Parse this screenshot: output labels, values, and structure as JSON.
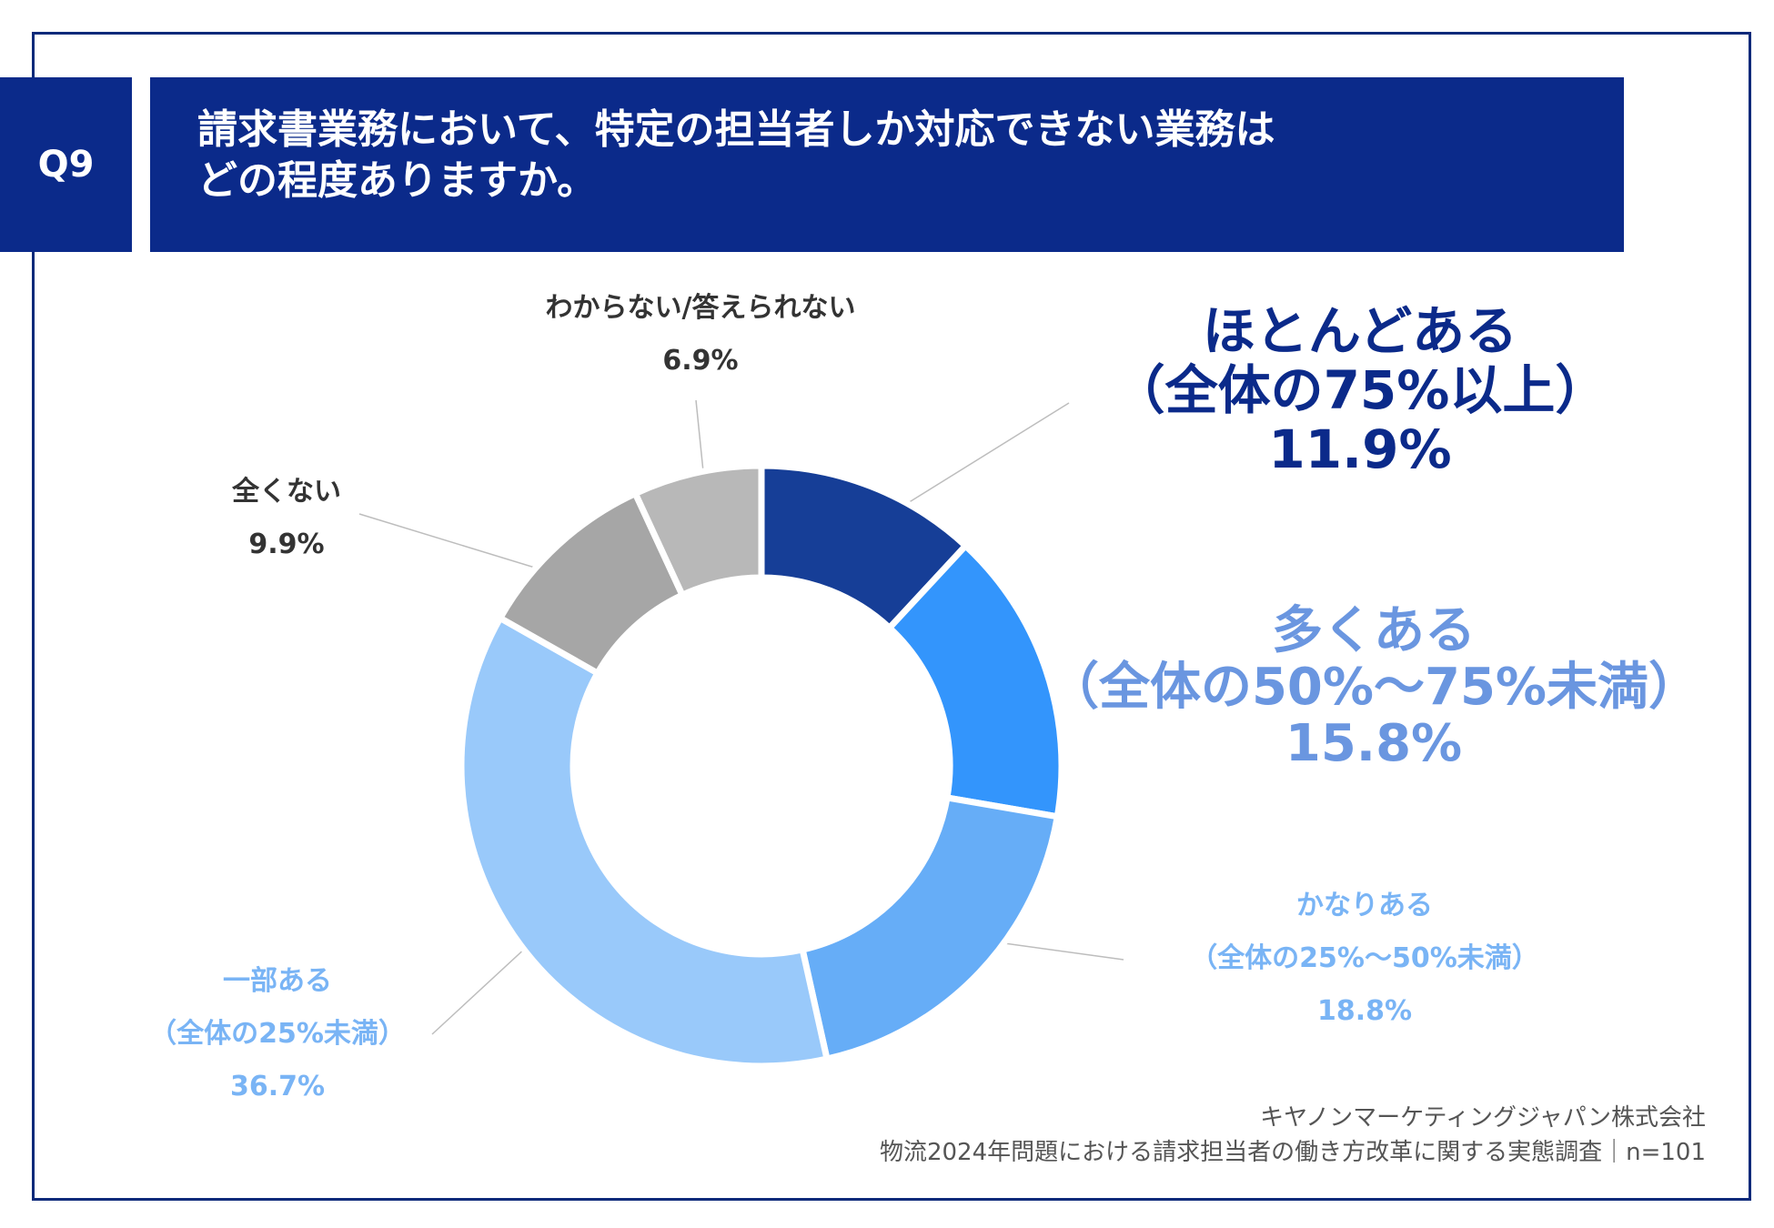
{
  "question": {
    "badge": "Q9",
    "title_line1": "請求書業務において、特定の担当者しか対応できない業務は",
    "title_line2": "どの程度ありますか。"
  },
  "colors": {
    "frame": "#0d2a7a",
    "header_bg": "#0b2a8a",
    "slices": [
      "#163e97",
      "#3395fc",
      "#66adf7",
      "#99c9fa",
      "#a6a6a6",
      "#b8b8b8"
    ]
  },
  "chart_data": {
    "type": "pie",
    "style": "donut",
    "start": "12 o'clock",
    "direction": "clockwise",
    "slices": [
      {
        "label": "ほとんどある",
        "sublabel": "（全体の75%以上）",
        "value": 11.9,
        "value_text": "11.9%"
      },
      {
        "label": "多くある",
        "sublabel": "（全体の50%〜75%未満）",
        "value": 15.8,
        "value_text": "15.8%"
      },
      {
        "label": "かなりある",
        "sublabel": "（全体の25%〜50%未満）",
        "value": 18.8,
        "value_text": "18.8%"
      },
      {
        "label": "一部ある",
        "sublabel": "（全体の25%未満）",
        "value": 36.7,
        "value_text": "36.7%"
      },
      {
        "label": "全くない",
        "sublabel": "",
        "value": 9.9,
        "value_text": "9.9%"
      },
      {
        "label": "わからない/答えられない",
        "sublabel": "",
        "value": 6.9,
        "value_text": "6.9%"
      }
    ]
  },
  "source": {
    "line1": "キヤノンマーケティングジャパン株式会社",
    "line2": "物流2024年問題における請求担当者の働き方改革に関する実態調査｜n=101"
  }
}
